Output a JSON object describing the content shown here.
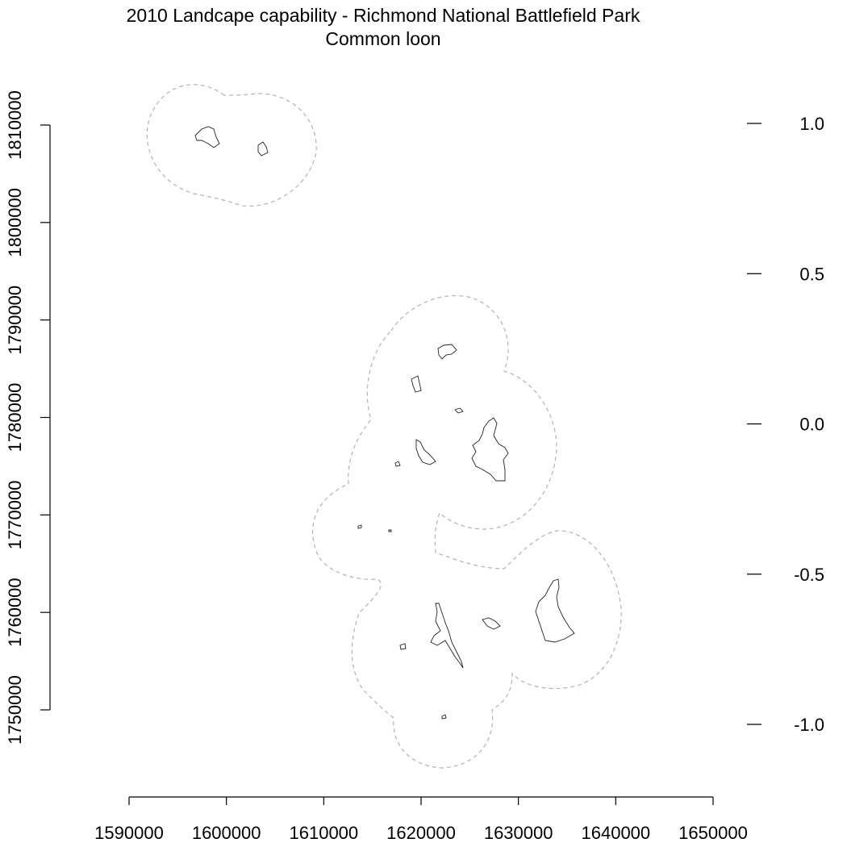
{
  "title": "2010 Landcape capability - Richmond National Battlefield Park",
  "subtitle": "Common loon",
  "map": {
    "x_axis": {
      "min": 1590000,
      "max": 1650000,
      "ticks": [
        1590000,
        1600000,
        1610000,
        1620000,
        1630000,
        1640000,
        1650000
      ]
    },
    "y_axis": {
      "min": 1750000,
      "max": 1810000,
      "ticks": [
        1750000,
        1760000,
        1770000,
        1780000,
        1790000,
        1800000,
        1810000
      ]
    },
    "legend_scale": {
      "ticks": [
        1.0,
        0.5,
        0.0,
        -0.5,
        -1.0
      ],
      "labels": [
        "1.0",
        "0.5",
        "0.0",
        "-0.5",
        "-1.0"
      ]
    },
    "buffer_style": "dashed grey outline",
    "feature_style": "thin dark grey outline"
  }
}
